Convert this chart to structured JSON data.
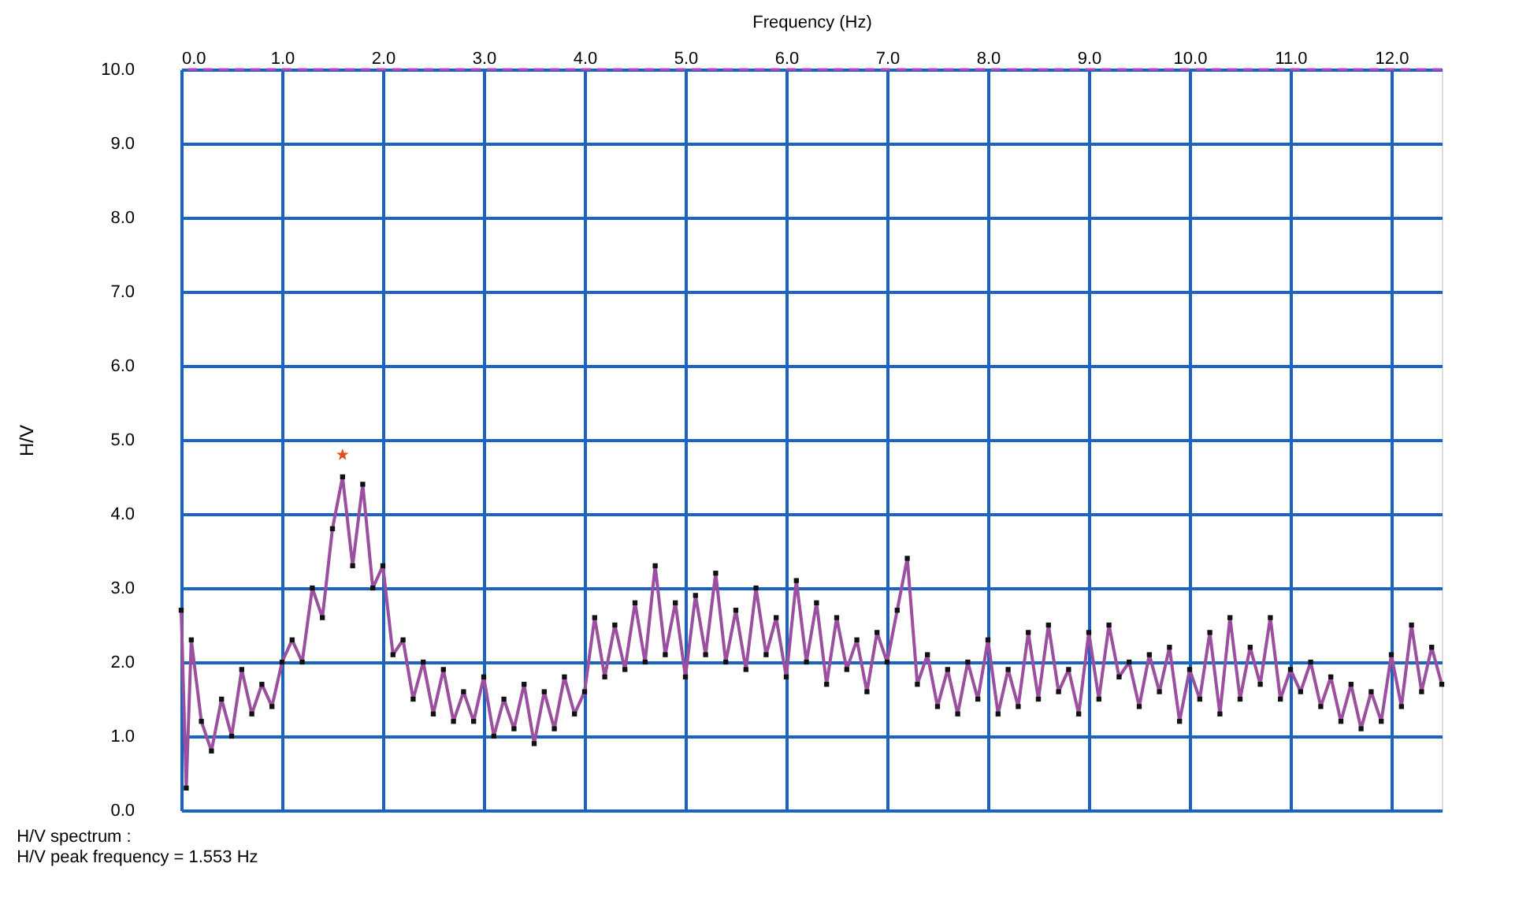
{
  "chart_data": {
    "type": "line",
    "xlabel": "Frequency (Hz)",
    "ylabel": "H/V",
    "x": [
      0.0,
      0.05,
      0.1,
      0.2,
      0.3,
      0.4,
      0.5,
      0.6,
      0.7,
      0.8,
      0.9,
      1.0,
      1.1,
      1.2,
      1.3,
      1.4,
      1.5,
      1.6,
      1.7,
      1.8,
      1.9,
      2.0,
      2.1,
      2.2,
      2.3,
      2.4,
      2.5,
      2.6,
      2.7,
      2.8,
      2.9,
      3.0,
      3.1,
      3.2,
      3.3,
      3.4,
      3.5,
      3.6,
      3.7,
      3.8,
      3.9,
      4.0,
      4.1,
      4.2,
      4.3,
      4.4,
      4.5,
      4.6,
      4.7,
      4.8,
      4.9,
      5.0,
      5.1,
      5.2,
      5.3,
      5.4,
      5.5,
      5.6,
      5.7,
      5.8,
      5.9,
      6.0,
      6.1,
      6.2,
      6.3,
      6.4,
      6.5,
      6.6,
      6.7,
      6.8,
      6.9,
      7.0,
      7.1,
      7.2,
      7.3,
      7.4,
      7.5,
      7.6,
      7.7,
      7.8,
      7.9,
      8.0,
      8.1,
      8.2,
      8.3,
      8.4,
      8.5,
      8.6,
      8.7,
      8.8,
      8.9,
      9.0,
      9.1,
      9.2,
      9.3,
      9.4,
      9.5,
      9.6,
      9.7,
      9.8,
      9.9,
      10.0,
      10.1,
      10.2,
      10.3,
      10.4,
      10.5,
      10.6,
      10.7,
      10.8,
      10.9,
      11.0,
      11.1,
      11.2,
      11.3,
      11.4,
      11.5,
      11.6,
      11.7,
      11.8,
      11.9,
      12.0,
      12.1,
      12.2,
      12.3,
      12.4,
      12.5
    ],
    "series": [
      {
        "color": "#9b4f9f",
        "marker": "square",
        "values": [
          2.7,
          0.3,
          2.3,
          1.2,
          0.8,
          1.5,
          1.0,
          1.9,
          1.3,
          1.7,
          1.4,
          2.0,
          2.3,
          2.0,
          3.0,
          2.6,
          3.8,
          4.5,
          3.3,
          4.4,
          3.0,
          3.3,
          2.1,
          2.3,
          1.5,
          2.0,
          1.3,
          1.9,
          1.2,
          1.6,
          1.2,
          1.8,
          1.0,
          1.5,
          1.1,
          1.7,
          0.9,
          1.6,
          1.1,
          1.8,
          1.3,
          1.6,
          2.6,
          1.8,
          2.5,
          1.9,
          2.8,
          2.0,
          3.3,
          2.1,
          2.8,
          1.8,
          2.9,
          2.1,
          3.2,
          2.0,
          2.7,
          1.9,
          3.0,
          2.1,
          2.6,
          1.8,
          3.1,
          2.0,
          2.8,
          1.7,
          2.6,
          1.9,
          2.3,
          1.6,
          2.4,
          2.0,
          2.7,
          3.4,
          1.7,
          2.1,
          1.4,
          1.9,
          1.3,
          2.0,
          1.5,
          2.3,
          1.3,
          1.9,
          1.4,
          2.4,
          1.5,
          2.5,
          1.6,
          1.9,
          1.3,
          2.4,
          1.5,
          2.5,
          1.8,
          2.0,
          1.4,
          2.1,
          1.6,
          2.2,
          1.2,
          1.9,
          1.5,
          2.4,
          1.3,
          2.6,
          1.5,
          2.2,
          1.7,
          2.6,
          1.5,
          1.9,
          1.6,
          2.0,
          1.4,
          1.8,
          1.2,
          1.7,
          1.1,
          1.6,
          1.2,
          2.1,
          1.4,
          2.5,
          1.6,
          2.2,
          1.7
        ]
      },
      {
        "type": "scatter",
        "color": "#e0501e",
        "marker": "star",
        "x": [
          1.6
        ],
        "values": [
          4.8
        ]
      }
    ],
    "xlim": [
      0,
      12.5
    ],
    "xticks": [
      {
        "value": 0,
        "label": "0.0"
      },
      {
        "value": 1,
        "label": "1.0"
      },
      {
        "value": 2,
        "label": "2.0"
      },
      {
        "value": 3,
        "label": "3.0"
      },
      {
        "value": 4,
        "label": "4.0"
      },
      {
        "value": 5,
        "label": "5.0"
      },
      {
        "value": 6,
        "label": "6.0"
      },
      {
        "value": 7,
        "label": "7.0"
      },
      {
        "value": 8,
        "label": "8.0"
      },
      {
        "value": 9,
        "label": "9.0"
      },
      {
        "value": 10,
        "label": "10.0"
      },
      {
        "value": 11,
        "label": "11.0"
      },
      {
        "value": 12,
        "label": "12.0"
      }
    ],
    "ylim": [
      0,
      10
    ],
    "yticks": [
      {
        "value": 0,
        "label": "0.0"
      },
      {
        "value": 1,
        "label": "1.0"
      },
      {
        "value": 2,
        "label": "2.0"
      },
      {
        "value": 3,
        "label": "3.0"
      },
      {
        "value": 4,
        "label": "4.0"
      },
      {
        "value": 5,
        "label": "5.0"
      },
      {
        "value": 6,
        "label": "6.0"
      },
      {
        "value": 7,
        "label": "7.0"
      },
      {
        "value": 8,
        "label": "8.0"
      },
      {
        "value": 9,
        "label": "9.0"
      },
      {
        "value": 10,
        "label": "10.0"
      }
    ],
    "grid": true,
    "ref_lines": [
      {
        "axis": "y",
        "value": 10,
        "color": "#c040c0",
        "line_style": "dashed"
      }
    ],
    "annotations": [
      "H/V spectrum :",
      "H/V peak frequency = 1.553 Hz"
    ]
  }
}
